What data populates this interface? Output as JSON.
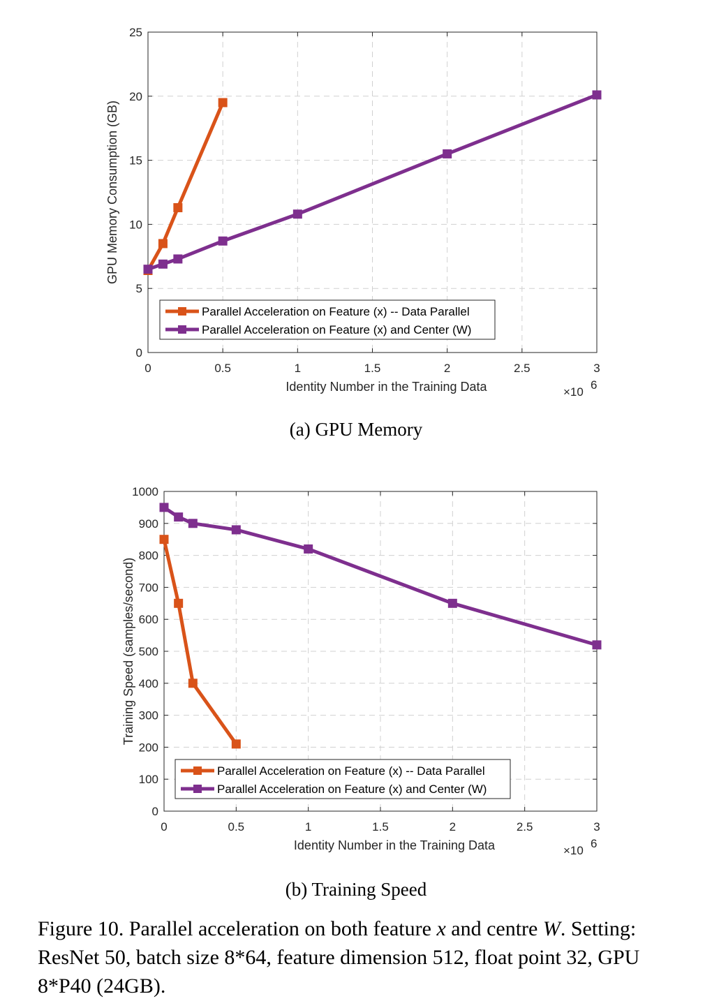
{
  "chart_data": [
    {
      "type": "line",
      "xlabel": "Identity Number in the Training Data",
      "ylabel": "GPU Memory Consumption (GB)",
      "xlim": [
        0,
        3000000
      ],
      "ylim": [
        0,
        25
      ],
      "x_exponent_label": "×10",
      "x_exponent_power": "6",
      "xticks": [
        0,
        0.5,
        1,
        1.5,
        2,
        2.5,
        3
      ],
      "xtick_labels": [
        "0",
        "0.5",
        "1",
        "1.5",
        "2",
        "2.5",
        "3"
      ],
      "yticks": [
        0,
        5,
        10,
        15,
        20,
        25
      ],
      "ytick_labels": [
        "0",
        "5",
        "10",
        "15",
        "20",
        "25"
      ],
      "grid": true,
      "legend_position": "lower-left",
      "series": [
        {
          "name": "Parallel Acceleration on Feature (x) -- Data Parallel",
          "color": "#D95319",
          "x": [
            0,
            100000,
            200000,
            500000
          ],
          "y": [
            6.4,
            8.5,
            11.3,
            19.5
          ]
        },
        {
          "name": "Parallel Acceleration on Feature (x) and Center (W)",
          "color": "#7E2F8E",
          "x": [
            0,
            100000,
            200000,
            500000,
            1000000,
            2000000,
            3000000
          ],
          "y": [
            6.5,
            6.9,
            7.3,
            8.7,
            10.8,
            15.5,
            20.1
          ]
        }
      ]
    },
    {
      "type": "line",
      "xlabel": "Identity Number in the Training Data",
      "ylabel": "Training Speed (samples/second)",
      "xlim": [
        0,
        3000000
      ],
      "ylim": [
        0,
        1000
      ],
      "x_exponent_label": "×10",
      "x_exponent_power": "6",
      "xticks": [
        0,
        0.5,
        1,
        1.5,
        2,
        2.5,
        3
      ],
      "xtick_labels": [
        "0",
        "0.5",
        "1",
        "1.5",
        "2",
        "2.5",
        "3"
      ],
      "yticks": [
        0,
        100,
        200,
        300,
        400,
        500,
        600,
        700,
        800,
        900,
        1000
      ],
      "ytick_labels": [
        "0",
        "100",
        "200",
        "300",
        "400",
        "500",
        "600",
        "700",
        "800",
        "900",
        "1000"
      ],
      "grid": true,
      "legend_position": "lower-left",
      "series": [
        {
          "name": "Parallel Acceleration on Feature (x) -- Data Parallel",
          "color": "#D95319",
          "x": [
            0,
            100000,
            200000,
            500000
          ],
          "y": [
            850,
            650,
            400,
            210
          ]
        },
        {
          "name": "Parallel Acceleration on Feature (x) and Center (W)",
          "color": "#7E2F8E",
          "x": [
            0,
            100000,
            200000,
            500000,
            1000000,
            2000000,
            3000000
          ],
          "y": [
            950,
            920,
            900,
            880,
            820,
            650,
            520
          ]
        }
      ]
    }
  ],
  "captions": {
    "a": "(a)  GPU Memory",
    "b": "(b)  Training Speed",
    "figure_part1": "Figure 10. Parallel acceleration on both feature ",
    "figure_var_x": "x",
    "figure_part2": " and centre ",
    "figure_var_w": "W",
    "figure_part3": ". Setting: ResNet 50, batch size 8*64, feature dimension 512, float point 32, GPU 8*P40 (24GB)."
  }
}
